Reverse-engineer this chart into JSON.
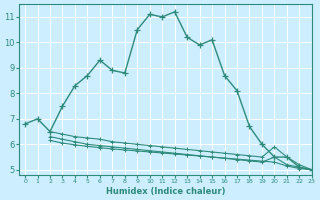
{
  "xlabel": "Humidex (Indice chaleur)",
  "background_color": "#cceeff",
  "grid_color": "#ffffff",
  "line_color": "#2e8b7a",
  "xlim": [
    -0.5,
    23
  ],
  "ylim": [
    4.8,
    11.5
  ],
  "xticks": [
    0,
    1,
    2,
    3,
    4,
    5,
    6,
    7,
    8,
    9,
    10,
    11,
    12,
    13,
    14,
    15,
    16,
    17,
    18,
    19,
    20,
    21,
    22,
    23
  ],
  "yticks": [
    5,
    6,
    7,
    8,
    9,
    10,
    11
  ],
  "main_curve_x": [
    0,
    1,
    2,
    3,
    4,
    5,
    6,
    7,
    8,
    9,
    10,
    11,
    12,
    13,
    14,
    15,
    16,
    17,
    18,
    19,
    20,
    21,
    22,
    23
  ],
  "main_curve_y": [
    6.8,
    7.0,
    6.5,
    7.5,
    8.3,
    8.7,
    9.3,
    8.9,
    8.8,
    10.5,
    11.1,
    11.0,
    11.2,
    10.2,
    9.9,
    10.1,
    8.7,
    8.1,
    6.7,
    6.0,
    5.5,
    5.5,
    5.1,
    5.0
  ],
  "flat_line1_x": [
    2,
    3,
    4,
    5,
    6,
    7,
    8,
    9,
    10,
    11,
    12,
    13,
    14,
    15,
    16,
    17,
    18,
    19,
    20,
    21,
    22,
    23
  ],
  "flat_line1_y": [
    6.5,
    6.4,
    6.3,
    6.25,
    6.2,
    6.1,
    6.05,
    6.0,
    5.95,
    5.9,
    5.85,
    5.8,
    5.75,
    5.7,
    5.65,
    5.6,
    5.55,
    5.5,
    5.9,
    5.5,
    5.2,
    5.0
  ],
  "flat_line2_x": [
    2,
    3,
    4,
    5,
    6,
    7,
    8,
    9,
    10,
    11,
    12,
    13,
    14,
    15,
    16,
    17,
    18,
    19,
    20,
    21,
    22,
    23
  ],
  "flat_line2_y": [
    6.3,
    6.2,
    6.1,
    6.0,
    5.95,
    5.9,
    5.85,
    5.8,
    5.75,
    5.7,
    5.65,
    5.6,
    5.55,
    5.5,
    5.45,
    5.4,
    5.35,
    5.3,
    5.5,
    5.2,
    5.1,
    5.0
  ],
  "flat_line3_x": [
    2,
    3,
    4,
    5,
    6,
    7,
    8,
    9,
    10,
    11,
    12,
    13,
    14,
    15,
    16,
    17,
    18,
    19,
    20,
    21,
    22,
    23
  ],
  "flat_line3_y": [
    6.15,
    6.05,
    5.98,
    5.92,
    5.87,
    5.82,
    5.78,
    5.74,
    5.7,
    5.66,
    5.62,
    5.58,
    5.54,
    5.5,
    5.46,
    5.42,
    5.38,
    5.34,
    5.3,
    5.15,
    5.05,
    5.0
  ]
}
